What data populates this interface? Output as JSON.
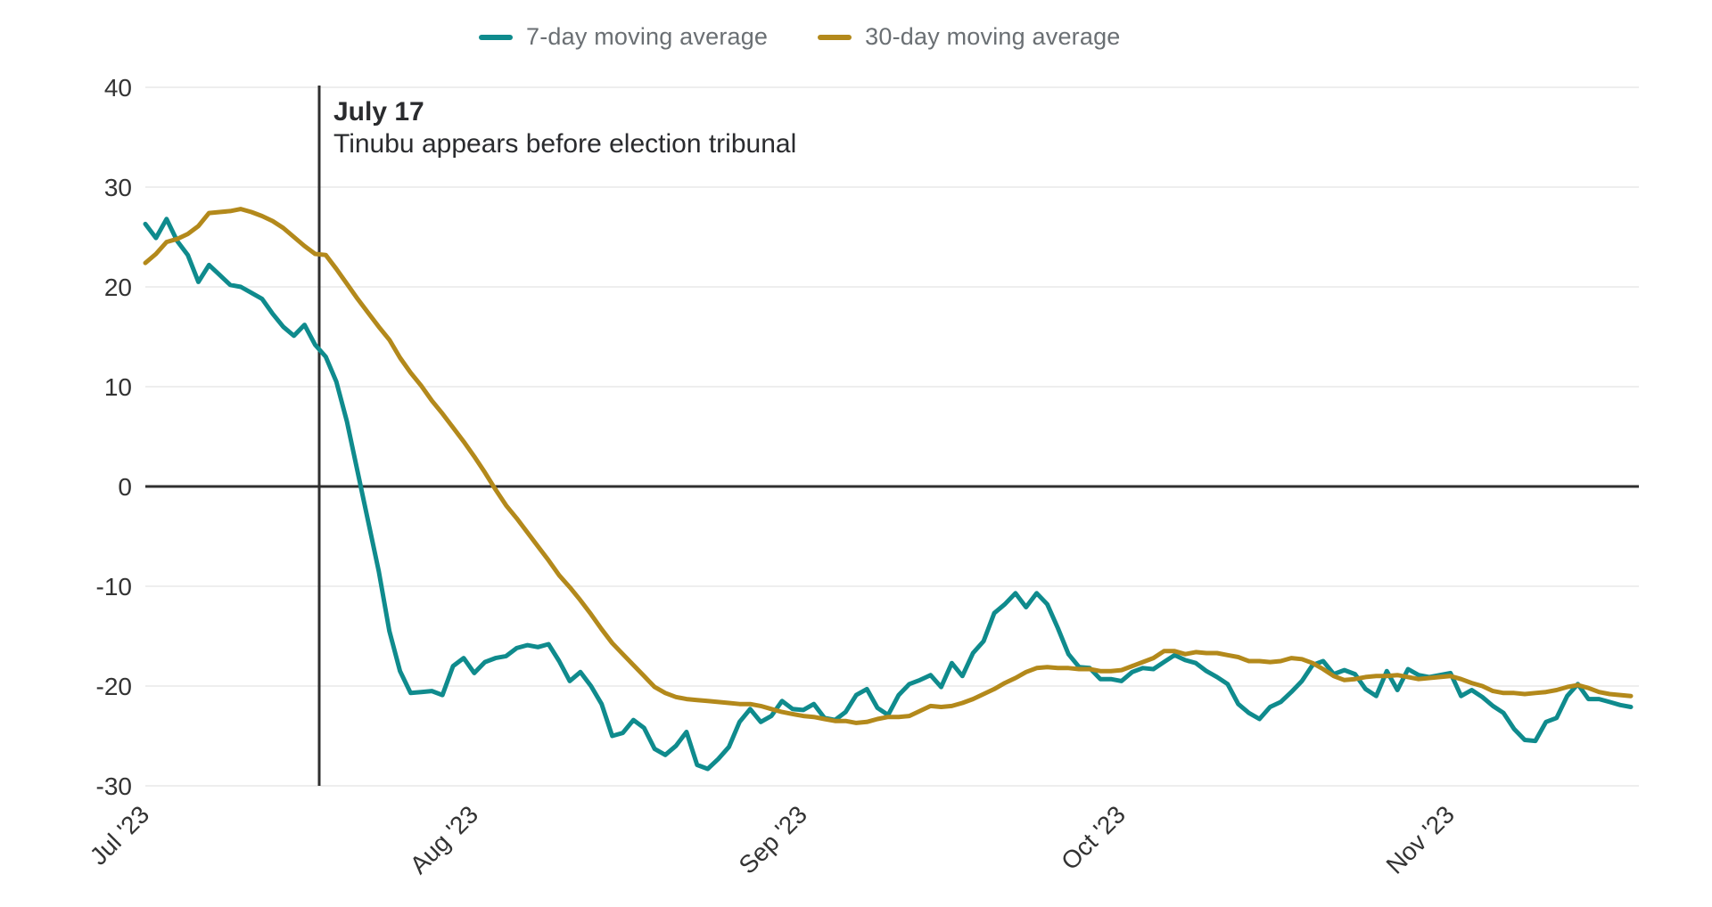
{
  "chart_data": {
    "type": "line",
    "title": "",
    "x_axis": {
      "unit": "date",
      "start": "2023-07-01",
      "end": "2023-11-18",
      "tick_labels": [
        "Jul '23",
        "Aug '23",
        "Sep '23",
        "Oct '23",
        "Nov '23"
      ],
      "tick_days": [
        0,
        31,
        62,
        92,
        123
      ],
      "total_days": 141
    },
    "y_axis": {
      "min": -30,
      "max": 40,
      "tick_interval": 10,
      "tick_labels": [
        "40",
        "30",
        "20",
        "10",
        "0",
        "-10",
        "-20",
        "-30"
      ]
    },
    "grid": true,
    "zero_line": true,
    "legend_position": "top-center",
    "annotation": {
      "date_label": "July 17",
      "text": "Tinubu appears before election tribunal",
      "day": 16,
      "line_color": "#2f2f2f"
    },
    "series": [
      {
        "name": "7-day moving average",
        "color": "#0f8b8d",
        "values": [
          26.3,
          24.9,
          26.8,
          24.6,
          23.2,
          20.5,
          22.2,
          21.2,
          20.2,
          20.0,
          19.4,
          18.8,
          17.3,
          16.0,
          15.1,
          16.2,
          14.2,
          13.0,
          10.5,
          6.5,
          1.5,
          -3.5,
          -8.5,
          -14.5,
          -18.5,
          -20.7,
          -20.6,
          -20.5,
          -20.9,
          -18.0,
          -17.2,
          -18.7,
          -17.6,
          -17.2,
          -17.0,
          -16.2,
          -15.9,
          -16.1,
          -15.8,
          -17.5,
          -19.5,
          -18.6,
          -20.0,
          -21.8,
          -25.0,
          -24.7,
          -23.4,
          -24.2,
          -26.3,
          -26.9,
          -26.0,
          -24.6,
          -27.9,
          -28.3,
          -27.3,
          -26.1,
          -23.6,
          -22.3,
          -23.6,
          -23.0,
          -21.5,
          -22.3,
          -22.4,
          -21.8,
          -23.2,
          -23.4,
          -22.6,
          -20.9,
          -20.3,
          -22.2,
          -22.9,
          -20.9,
          -19.8,
          -19.4,
          -18.9,
          -20.1,
          -17.7,
          -19.0,
          -16.7,
          -15.5,
          -12.7,
          -11.8,
          -10.7,
          -12.1,
          -10.7,
          -11.8,
          -14.2,
          -16.8,
          -18.1,
          -18.2,
          -19.3,
          -19.3,
          -19.5,
          -18.6,
          -18.2,
          -18.3,
          -17.6,
          -16.9,
          -17.4,
          -17.7,
          -18.5,
          -19.1,
          -19.8,
          -21.8,
          -22.7,
          -23.3,
          -22.1,
          -21.6,
          -20.6,
          -19.5,
          -17.9,
          -17.5,
          -18.8,
          -18.4,
          -18.8,
          -20.3,
          -21.0,
          -18.5,
          -20.4,
          -18.3,
          -18.9,
          -19.1,
          -18.9,
          -18.7,
          -21.0,
          -20.4,
          -21.1,
          -22.0,
          -22.7,
          -24.3,
          -25.4,
          -25.5,
          -23.6,
          -23.2,
          -21.0,
          -19.8,
          -21.3,
          -21.3,
          -21.6,
          -21.9,
          -22.1
        ]
      },
      {
        "name": "30-day moving average",
        "color": "#b3891b",
        "values": [
          22.4,
          23.3,
          24.5,
          24.8,
          25.3,
          26.1,
          27.4,
          27.5,
          27.6,
          27.8,
          27.5,
          27.1,
          26.6,
          25.9,
          25.0,
          24.1,
          23.3,
          23.2,
          21.8,
          20.3,
          18.8,
          17.4,
          16.0,
          14.7,
          12.9,
          11.4,
          10.1,
          8.6,
          7.3,
          5.9,
          4.5,
          3.0,
          1.4,
          -0.3,
          -1.9,
          -3.2,
          -4.6,
          -6.0,
          -7.4,
          -8.9,
          -10.1,
          -11.4,
          -12.8,
          -14.3,
          -15.7,
          -16.8,
          -17.9,
          -19.0,
          -20.1,
          -20.7,
          -21.1,
          -21.3,
          -21.4,
          -21.5,
          -21.6,
          -21.7,
          -21.8,
          -21.8,
          -22.0,
          -22.3,
          -22.6,
          -22.8,
          -23.0,
          -23.1,
          -23.3,
          -23.5,
          -23.5,
          -23.7,
          -23.6,
          -23.3,
          -23.1,
          -23.1,
          -23.0,
          -22.5,
          -22.0,
          -22.1,
          -22.0,
          -21.7,
          -21.3,
          -20.8,
          -20.3,
          -19.7,
          -19.2,
          -18.6,
          -18.2,
          -18.1,
          -18.2,
          -18.2,
          -18.3,
          -18.3,
          -18.5,
          -18.5,
          -18.4,
          -18.0,
          -17.6,
          -17.2,
          -16.5,
          -16.5,
          -16.8,
          -16.6,
          -16.7,
          -16.7,
          -16.9,
          -17.1,
          -17.5,
          -17.5,
          -17.6,
          -17.5,
          -17.2,
          -17.3,
          -17.7,
          -18.3,
          -19.0,
          -19.4,
          -19.3,
          -19.1,
          -19.0,
          -19.0,
          -18.9,
          -19.1,
          -19.3,
          -19.2,
          -19.1,
          -19.0,
          -19.3,
          -19.7,
          -20.0,
          -20.5,
          -20.7,
          -20.7,
          -20.8,
          -20.7,
          -20.6,
          -20.4,
          -20.1,
          -19.9,
          -20.2,
          -20.6,
          -20.8,
          -20.9,
          -21.0
        ]
      }
    ]
  }
}
